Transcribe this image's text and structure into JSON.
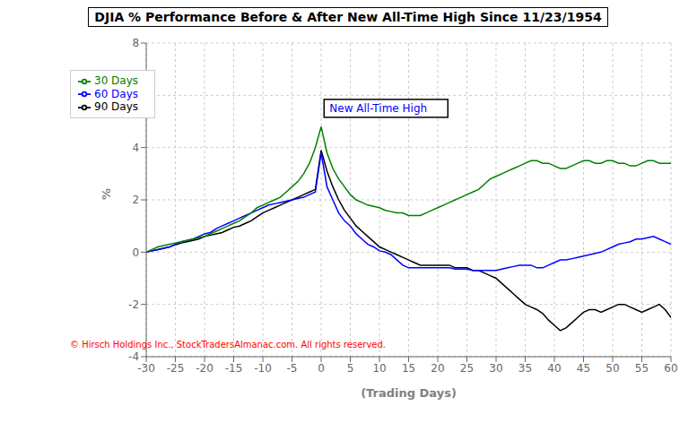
{
  "chart_data": {
    "type": "line",
    "title": "DJIA % Performance Before & After New All-Time High Since 11/23/1954",
    "x_label": "(Trading Days)",
    "y_label": "%",
    "xlim": [
      -30,
      60
    ],
    "ylim": [
      -4,
      8
    ],
    "xticks": [
      -30,
      -25,
      -20,
      -15,
      -10,
      -5,
      0,
      5,
      10,
      15,
      20,
      25,
      30,
      35,
      40,
      45,
      50,
      55,
      60
    ],
    "yticks": [
      -4,
      -2,
      0,
      2,
      4,
      6,
      8
    ],
    "grid": true,
    "legend": "upper left",
    "annotations": [
      {
        "text": "New All-Time  High",
        "x": 0.5,
        "y": 5.5,
        "color": "blue"
      },
      {
        "text": "© Hirsch Holdings Inc., StockTradersAlmanac.com. All rights reserved.",
        "color": "#FF0000"
      }
    ],
    "x": [
      -30,
      -29,
      -28,
      -27,
      -26,
      -25,
      -24,
      -23,
      -22,
      -21,
      -20,
      -19,
      -18,
      -17,
      -16,
      -15,
      -14,
      -13,
      -12,
      -11,
      -10,
      -9,
      -8,
      -7,
      -6,
      -5,
      -4,
      -3,
      -2,
      -1,
      0,
      1,
      2,
      3,
      4,
      5,
      6,
      7,
      8,
      9,
      10,
      11,
      12,
      13,
      14,
      15,
      16,
      17,
      18,
      19,
      20,
      21,
      22,
      23,
      24,
      25,
      26,
      27,
      28,
      29,
      30,
      31,
      32,
      33,
      34,
      35,
      36,
      37,
      38,
      39,
      40,
      41,
      42,
      43,
      44,
      45,
      46,
      47,
      48,
      49,
      50,
      51,
      52,
      53,
      54,
      55,
      56,
      57,
      58,
      59,
      60
    ],
    "series": [
      {
        "name": "90 Days",
        "color": "#000000",
        "values": [
          0.0,
          0.05,
          0.1,
          0.15,
          0.2,
          0.28,
          0.35,
          0.4,
          0.45,
          0.5,
          0.6,
          0.65,
          0.7,
          0.75,
          0.85,
          0.95,
          1.0,
          1.1,
          1.2,
          1.35,
          1.5,
          1.6,
          1.7,
          1.8,
          1.9,
          2.0,
          2.1,
          2.2,
          2.3,
          2.4,
          3.9,
          3.1,
          2.5,
          2.0,
          1.6,
          1.3,
          1.0,
          0.8,
          0.6,
          0.4,
          0.2,
          0.1,
          0.0,
          -0.1,
          -0.2,
          -0.3,
          -0.4,
          -0.5,
          -0.5,
          -0.5,
          -0.5,
          -0.5,
          -0.5,
          -0.6,
          -0.6,
          -0.6,
          -0.7,
          -0.7,
          -0.8,
          -0.9,
          -1.0,
          -1.2,
          -1.4,
          -1.6,
          -1.8,
          -2.0,
          -2.1,
          -2.2,
          -2.35,
          -2.6,
          -2.8,
          -3.0,
          -2.9,
          -2.7,
          -2.5,
          -2.3,
          -2.2,
          -2.2,
          -2.3,
          -2.2,
          -2.1,
          -2.0,
          -2.0,
          -2.1,
          -2.2,
          -2.3,
          -2.2,
          -2.1,
          -2.0,
          -2.2,
          -2.5
        ]
      },
      {
        "name": "60 Days",
        "color": "#0000FF",
        "values": [
          0.0,
          0.05,
          0.1,
          0.15,
          0.2,
          0.3,
          0.4,
          0.45,
          0.5,
          0.6,
          0.7,
          0.75,
          0.9,
          1.0,
          1.1,
          1.2,
          1.3,
          1.4,
          1.5,
          1.6,
          1.7,
          1.8,
          1.85,
          1.9,
          1.95,
          2.0,
          2.05,
          2.1,
          2.2,
          2.3,
          3.8,
          2.5,
          2.0,
          1.5,
          1.2,
          1.0,
          0.7,
          0.5,
          0.3,
          0.2,
          0.05,
          0.0,
          -0.1,
          -0.3,
          -0.5,
          -0.6,
          -0.6,
          -0.6,
          -0.6,
          -0.6,
          -0.6,
          -0.6,
          -0.6,
          -0.65,
          -0.65,
          -0.65,
          -0.7,
          -0.7,
          -0.7,
          -0.7,
          -0.7,
          -0.65,
          -0.6,
          -0.55,
          -0.5,
          -0.5,
          -0.5,
          -0.6,
          -0.6,
          -0.5,
          -0.4,
          -0.3,
          -0.3,
          -0.25,
          -0.2,
          -0.15,
          -0.1,
          -0.05,
          0.0,
          0.1,
          0.2,
          0.3,
          0.35,
          0.4,
          0.5,
          0.5,
          0.55,
          0.6,
          0.5,
          0.4,
          0.3
        ]
      },
      {
        "name": "30 Days",
        "color": "#008000",
        "values": [
          0.0,
          0.1,
          0.2,
          0.25,
          0.3,
          0.35,
          0.4,
          0.45,
          0.5,
          0.55,
          0.6,
          0.7,
          0.8,
          0.9,
          1.0,
          1.1,
          1.2,
          1.35,
          1.5,
          1.7,
          1.8,
          1.9,
          2.0,
          2.1,
          2.3,
          2.5,
          2.7,
          3.0,
          3.4,
          4.0,
          4.8,
          3.8,
          3.2,
          2.8,
          2.5,
          2.2,
          2.0,
          1.9,
          1.8,
          1.75,
          1.7,
          1.6,
          1.55,
          1.5,
          1.5,
          1.4,
          1.4,
          1.4,
          1.5,
          1.6,
          1.7,
          1.8,
          1.9,
          2.0,
          2.1,
          2.2,
          2.3,
          2.4,
          2.6,
          2.8,
          2.9,
          3.0,
          3.1,
          3.2,
          3.3,
          3.4,
          3.5,
          3.5,
          3.4,
          3.4,
          3.3,
          3.2,
          3.2,
          3.3,
          3.4,
          3.5,
          3.5,
          3.4,
          3.4,
          3.5,
          3.5,
          3.4,
          3.4,
          3.3,
          3.3,
          3.4,
          3.5,
          3.5,
          3.4,
          3.4,
          3.4
        ]
      }
    ]
  }
}
